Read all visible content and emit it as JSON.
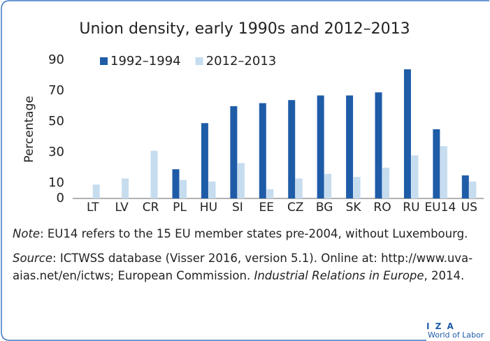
{
  "chart_data": {
    "type": "bar",
    "title": "Union density, early 1990s and 2012–2013",
    "ylabel": "Percentage",
    "categories": [
      "LT",
      "LV",
      "CR",
      "PL",
      "HU",
      "SI",
      "EE",
      "CZ",
      "BG",
      "SK",
      "RO",
      "RU",
      "EU14",
      "US"
    ],
    "series": [
      {
        "name": "1992–1994",
        "color": "#1f5ca8",
        "values": [
          null,
          null,
          null,
          19,
          49,
          60,
          62,
          64,
          67,
          67,
          69,
          84,
          45,
          15
        ]
      },
      {
        "name": "2012–2013",
        "color": "#c6dcef",
        "values": [
          9,
          13,
          31,
          12,
          11,
          23,
          6,
          13,
          16,
          14,
          20,
          28,
          34,
          11
        ]
      }
    ],
    "ylim": [
      0,
      90
    ],
    "yticks": [
      0,
      10,
      30,
      50,
      70,
      90
    ],
    "grid": false,
    "legend": "top-left"
  },
  "note": {
    "label": "Note",
    "text": ": EU14 refers to the 15 EU member states pre-2004, without Luxembourg."
  },
  "source": {
    "label": "Source",
    "text": ": ICTWSS database (Visser 2016, version 5.1). Online at: http://www.uva-aias.net/en/ictws; European Commission. ",
    "italic": "Industrial Relations in Europe",
    "end": ", 2014."
  },
  "logo": {
    "top": "I Z A",
    "bottom": "World of Labor"
  }
}
